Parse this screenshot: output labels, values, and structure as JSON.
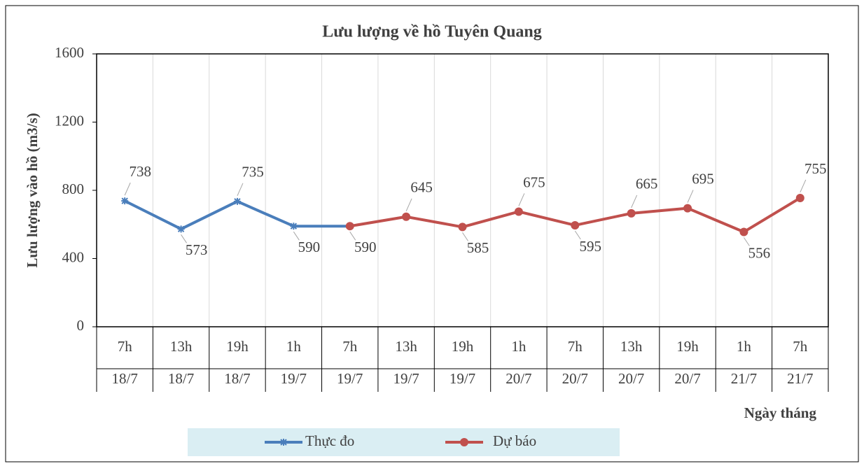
{
  "chart_data": {
    "type": "line",
    "title": "Lưu lượng về hồ Tuyên Quang",
    "y_label": "Lưu lượng vào hồ (m3/s)",
    "x_label": "Ngày tháng",
    "categories": [
      [
        "7h",
        "18/7"
      ],
      [
        "13h",
        "18/7"
      ],
      [
        "19h",
        "18/7"
      ],
      [
        "1h",
        "19/7"
      ],
      [
        "7h",
        "19/7"
      ],
      [
        "13h",
        "19/7"
      ],
      [
        "19h",
        "19/7"
      ],
      [
        "1h",
        "20/7"
      ],
      [
        "7h",
        "20/7"
      ],
      [
        "13h",
        "20/7"
      ],
      [
        "19h",
        "20/7"
      ],
      [
        "1h",
        "21/7"
      ],
      [
        "7h",
        "21/7"
      ]
    ],
    "series": [
      {
        "name": "Thực đo",
        "color": "#4a7ebb",
        "marker": "star",
        "values": [
          738,
          573,
          735,
          590,
          590,
          null,
          null,
          null,
          null,
          null,
          null,
          null,
          null
        ],
        "value_labels": [
          "738",
          "573",
          "735",
          "590",
          "590",
          null,
          null,
          null,
          null,
          null,
          null,
          null,
          null
        ]
      },
      {
        "name": "Dự báo",
        "color": "#c0504d",
        "marker": "circle",
        "values": [
          null,
          null,
          null,
          null,
          590,
          645,
          585,
          675,
          595,
          665,
          695,
          556,
          755
        ],
        "value_labels": [
          null,
          null,
          null,
          null,
          null,
          "645",
          "585",
          "675",
          "595",
          "665",
          "695",
          "556",
          "755"
        ]
      }
    ],
    "ylim": [
      0,
      1600
    ],
    "yticks": [
      0,
      400,
      800,
      1200,
      1600
    ],
    "grid": "vertical"
  }
}
